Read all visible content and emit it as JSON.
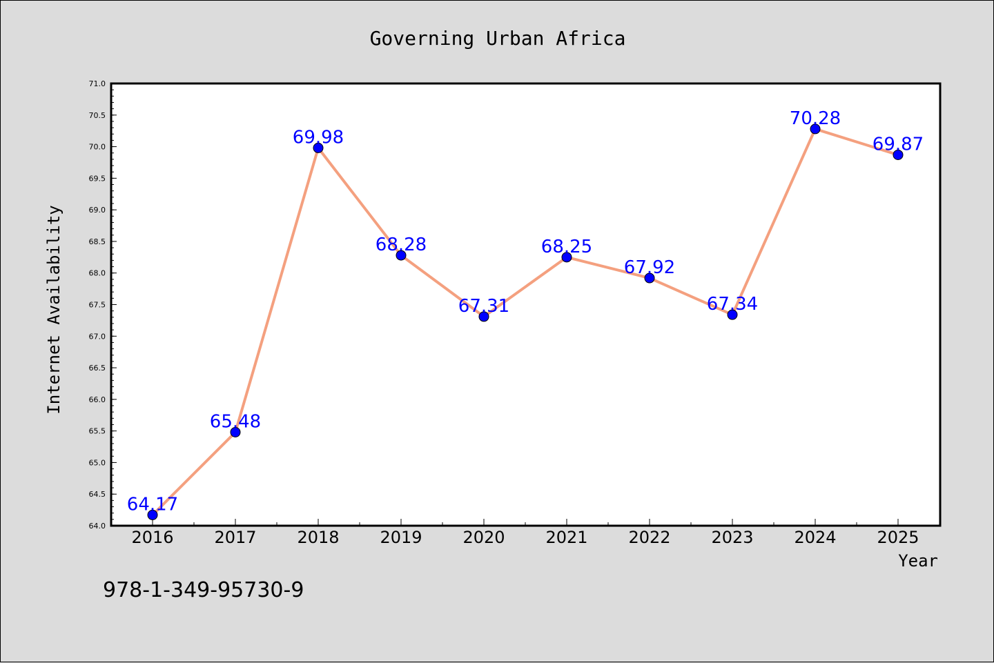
{
  "chart_data": {
    "type": "line",
    "title": "Governing Urban Africa",
    "xlabel": "Year",
    "ylabel": "Internet Availability",
    "categories": [
      "2016",
      "2017",
      "2018",
      "2019",
      "2020",
      "2021",
      "2022",
      "2023",
      "2024",
      "2025"
    ],
    "series": [
      {
        "values": [
          64.17,
          65.48,
          69.98,
          68.28,
          67.31,
          68.25,
          67.92,
          67.34,
          70.28,
          69.87
        ]
      }
    ],
    "data_labels": [
      "64.17",
      "65.48",
      "69.98",
      "68.28",
      "67.31",
      "68.25",
      "67.92",
      "67.34",
      "70.28",
      "69.87"
    ],
    "ylim": [
      64.0,
      71.0
    ],
    "yticks": [
      "64.0",
      "64.5",
      "65.0",
      "65.5",
      "66.0",
      "66.5",
      "67.0",
      "67.5",
      "68.0",
      "68.5",
      "69.0",
      "69.5",
      "70.0",
      "70.5",
      "71.0"
    ],
    "grid": false,
    "legend": "none"
  },
  "footnote": "978-1-349-95730-9",
  "colors": {
    "line": "#f4a07f",
    "marker": "#0000ff",
    "data_label": "#0000ff",
    "background": "#dcdcdc",
    "plot_area": "#ffffff"
  }
}
